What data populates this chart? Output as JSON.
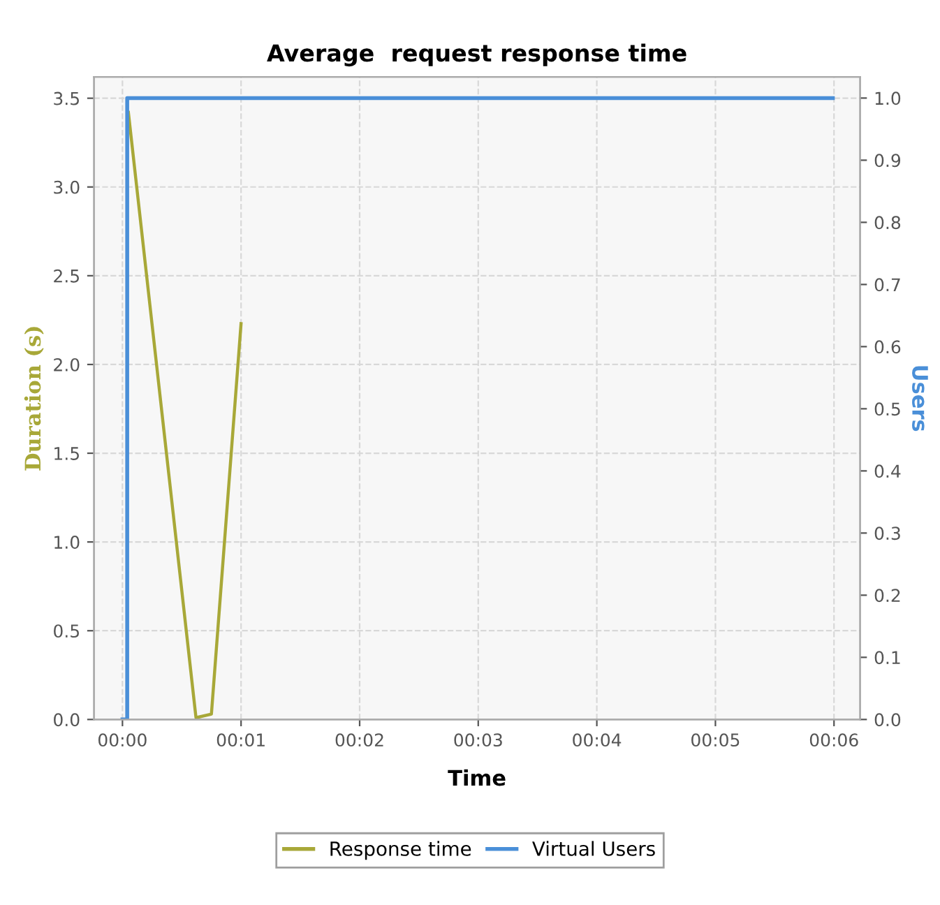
{
  "chart_data": {
    "type": "line",
    "title": "Average  request response time",
    "xlabel": "Time",
    "ylabel": "Duration (s)",
    "y2label": "Users",
    "xlim": [
      -0.24,
      6.22
    ],
    "xticks": [
      {
        "value": 0,
        "label": "00:00"
      },
      {
        "value": 1,
        "label": "00:01"
      },
      {
        "value": 2,
        "label": "00:02"
      },
      {
        "value": 3,
        "label": "00:03"
      },
      {
        "value": 4,
        "label": "00:04"
      },
      {
        "value": 5,
        "label": "00:05"
      },
      {
        "value": 6,
        "label": "00:06"
      }
    ],
    "ylim": [
      0,
      3.62
    ],
    "yticks": [
      {
        "value": 0,
        "label": "0.0"
      },
      {
        "value": 0.5,
        "label": "0.5"
      },
      {
        "value": 1,
        "label": "1.0"
      },
      {
        "value": 1.5,
        "label": "1.5"
      },
      {
        "value": 2,
        "label": "2.0"
      },
      {
        "value": 2.5,
        "label": "2.5"
      },
      {
        "value": 3,
        "label": "3.0"
      },
      {
        "value": 3.5,
        "label": "3.5"
      }
    ],
    "y2lim": [
      0,
      1.034
    ],
    "y2ticks": [
      {
        "value": 0,
        "label": "0.0"
      },
      0.1,
      0.2,
      0.3,
      0.4,
      0.5,
      0.6,
      0.7,
      0.8,
      0.9,
      {
        "value": 1,
        "label": "1.0"
      }
    ],
    "grid": true,
    "legend": "bottom",
    "series": [
      {
        "name": "Response time",
        "color": "#a8a838",
        "x": [
          0.05,
          0.62,
          0.75,
          1.0
        ],
        "values": [
          3.42,
          0.01,
          0.03,
          2.23
        ]
      },
      {
        "name": "Virtual Users",
        "color": "#4a8fd8",
        "type": "step",
        "axis": "y2",
        "x": [
          0,
          0.04,
          5.99
        ],
        "values": [
          0,
          1,
          1
        ]
      }
    ]
  }
}
